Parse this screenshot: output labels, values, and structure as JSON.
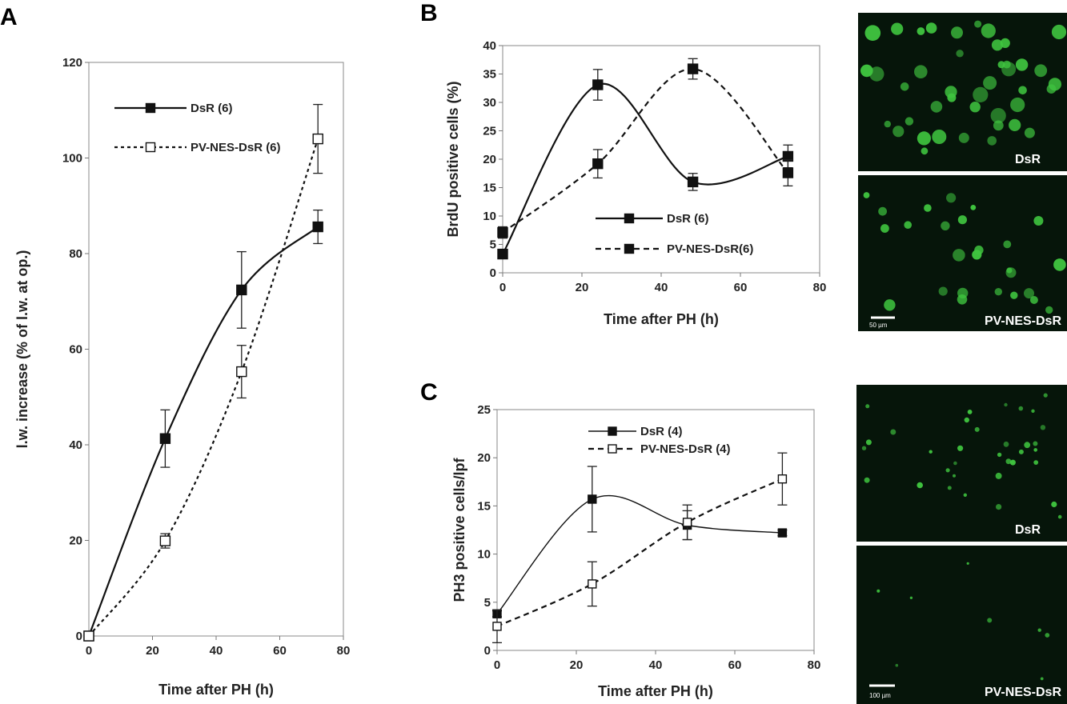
{
  "panels": {
    "A": "A",
    "B": "B",
    "C": "C"
  },
  "chart_data": [
    {
      "id": "A",
      "type": "line",
      "xlabel": "Time after PH (h)",
      "ylabel": "l.w. increase (% of l.w. at op.)",
      "xlim": [
        0,
        80
      ],
      "ylim": [
        0,
        120
      ],
      "xticks": [
        0,
        20,
        40,
        60,
        80
      ],
      "yticks": [
        0,
        20,
        40,
        60,
        80,
        100,
        120
      ],
      "legend_position": "upper-left",
      "series": [
        {
          "name": "DsR (6)",
          "style": "solid",
          "marker": "filled-square",
          "x": [
            0,
            24,
            48,
            72
          ],
          "y": [
            0,
            41.3,
            72.4,
            85.6
          ],
          "err": [
            0,
            6,
            8,
            3.5
          ]
        },
        {
          "name": "PV-NES-DsR (6)",
          "style": "dashed",
          "marker": "open-square",
          "x": [
            0,
            24,
            48,
            72
          ],
          "y": [
            0,
            19.9,
            55.3,
            104
          ],
          "err": [
            0,
            1.5,
            5.5,
            7.2
          ]
        }
      ]
    },
    {
      "id": "B",
      "type": "line",
      "xlabel": "Time after PH (h)",
      "ylabel": "BrdU positive cells (%)",
      "xlim": [
        0,
        80
      ],
      "ylim": [
        0,
        40
      ],
      "xticks": [
        0,
        20,
        40,
        60,
        80
      ],
      "yticks": [
        0,
        5,
        10,
        15,
        20,
        25,
        30,
        35,
        40
      ],
      "legend_position": "lower-center",
      "series": [
        {
          "name": "DsR (6)",
          "style": "solid",
          "marker": "filled-square",
          "x": [
            0,
            24,
            48,
            72
          ],
          "y": [
            3.3,
            33.1,
            16.0,
            20.5
          ],
          "err": [
            0.8,
            2.7,
            1.5,
            2.0
          ]
        },
        {
          "name": "PV-NES-DsR(6)",
          "style": "dashed",
          "marker": "filled-square",
          "x": [
            0,
            24,
            48,
            72
          ],
          "y": [
            7.1,
            19.2,
            35.9,
            17.6
          ],
          "err": [
            1.0,
            2.5,
            1.8,
            2.3
          ]
        }
      ]
    },
    {
      "id": "C",
      "type": "line",
      "xlabel": "Time after PH (h)",
      "ylabel": "PH3 positive cells/lpf",
      "xlim": [
        0,
        80
      ],
      "ylim": [
        0,
        25
      ],
      "xticks": [
        0,
        20,
        40,
        60,
        80
      ],
      "yticks": [
        0,
        5,
        10,
        15,
        20,
        25
      ],
      "legend_position": "top-center",
      "series": [
        {
          "name": "DsR (4)",
          "style": "solid",
          "marker": "filled-square",
          "x": [
            0,
            24,
            48,
            72
          ],
          "y": [
            3.8,
            15.7,
            13.0,
            12.2
          ],
          "err": [
            0.3,
            3.4,
            1.5,
            0.3
          ]
        },
        {
          "name": "PV-NES-DsR (4)",
          "style": "dashed",
          "marker": "open-square",
          "x": [
            0,
            24,
            48,
            72
          ],
          "y": [
            2.5,
            6.9,
            13.3,
            17.8
          ],
          "err": [
            1.7,
            2.3,
            1.8,
            2.7
          ]
        }
      ]
    }
  ],
  "micrographs": [
    {
      "id": "B-top",
      "label": "DsR",
      "scale": ""
    },
    {
      "id": "B-bottom",
      "label": "PV-NES-DsR",
      "scale": "50 µm"
    },
    {
      "id": "C-top",
      "label": "DsR",
      "scale": ""
    },
    {
      "id": "C-bottom",
      "label": "PV-NES-DsR",
      "scale": "100 µm"
    }
  ],
  "colors": {
    "line": "#111111",
    "axis": "#888888",
    "micro_bg": "#06150a",
    "cell": "#4cd24c"
  }
}
